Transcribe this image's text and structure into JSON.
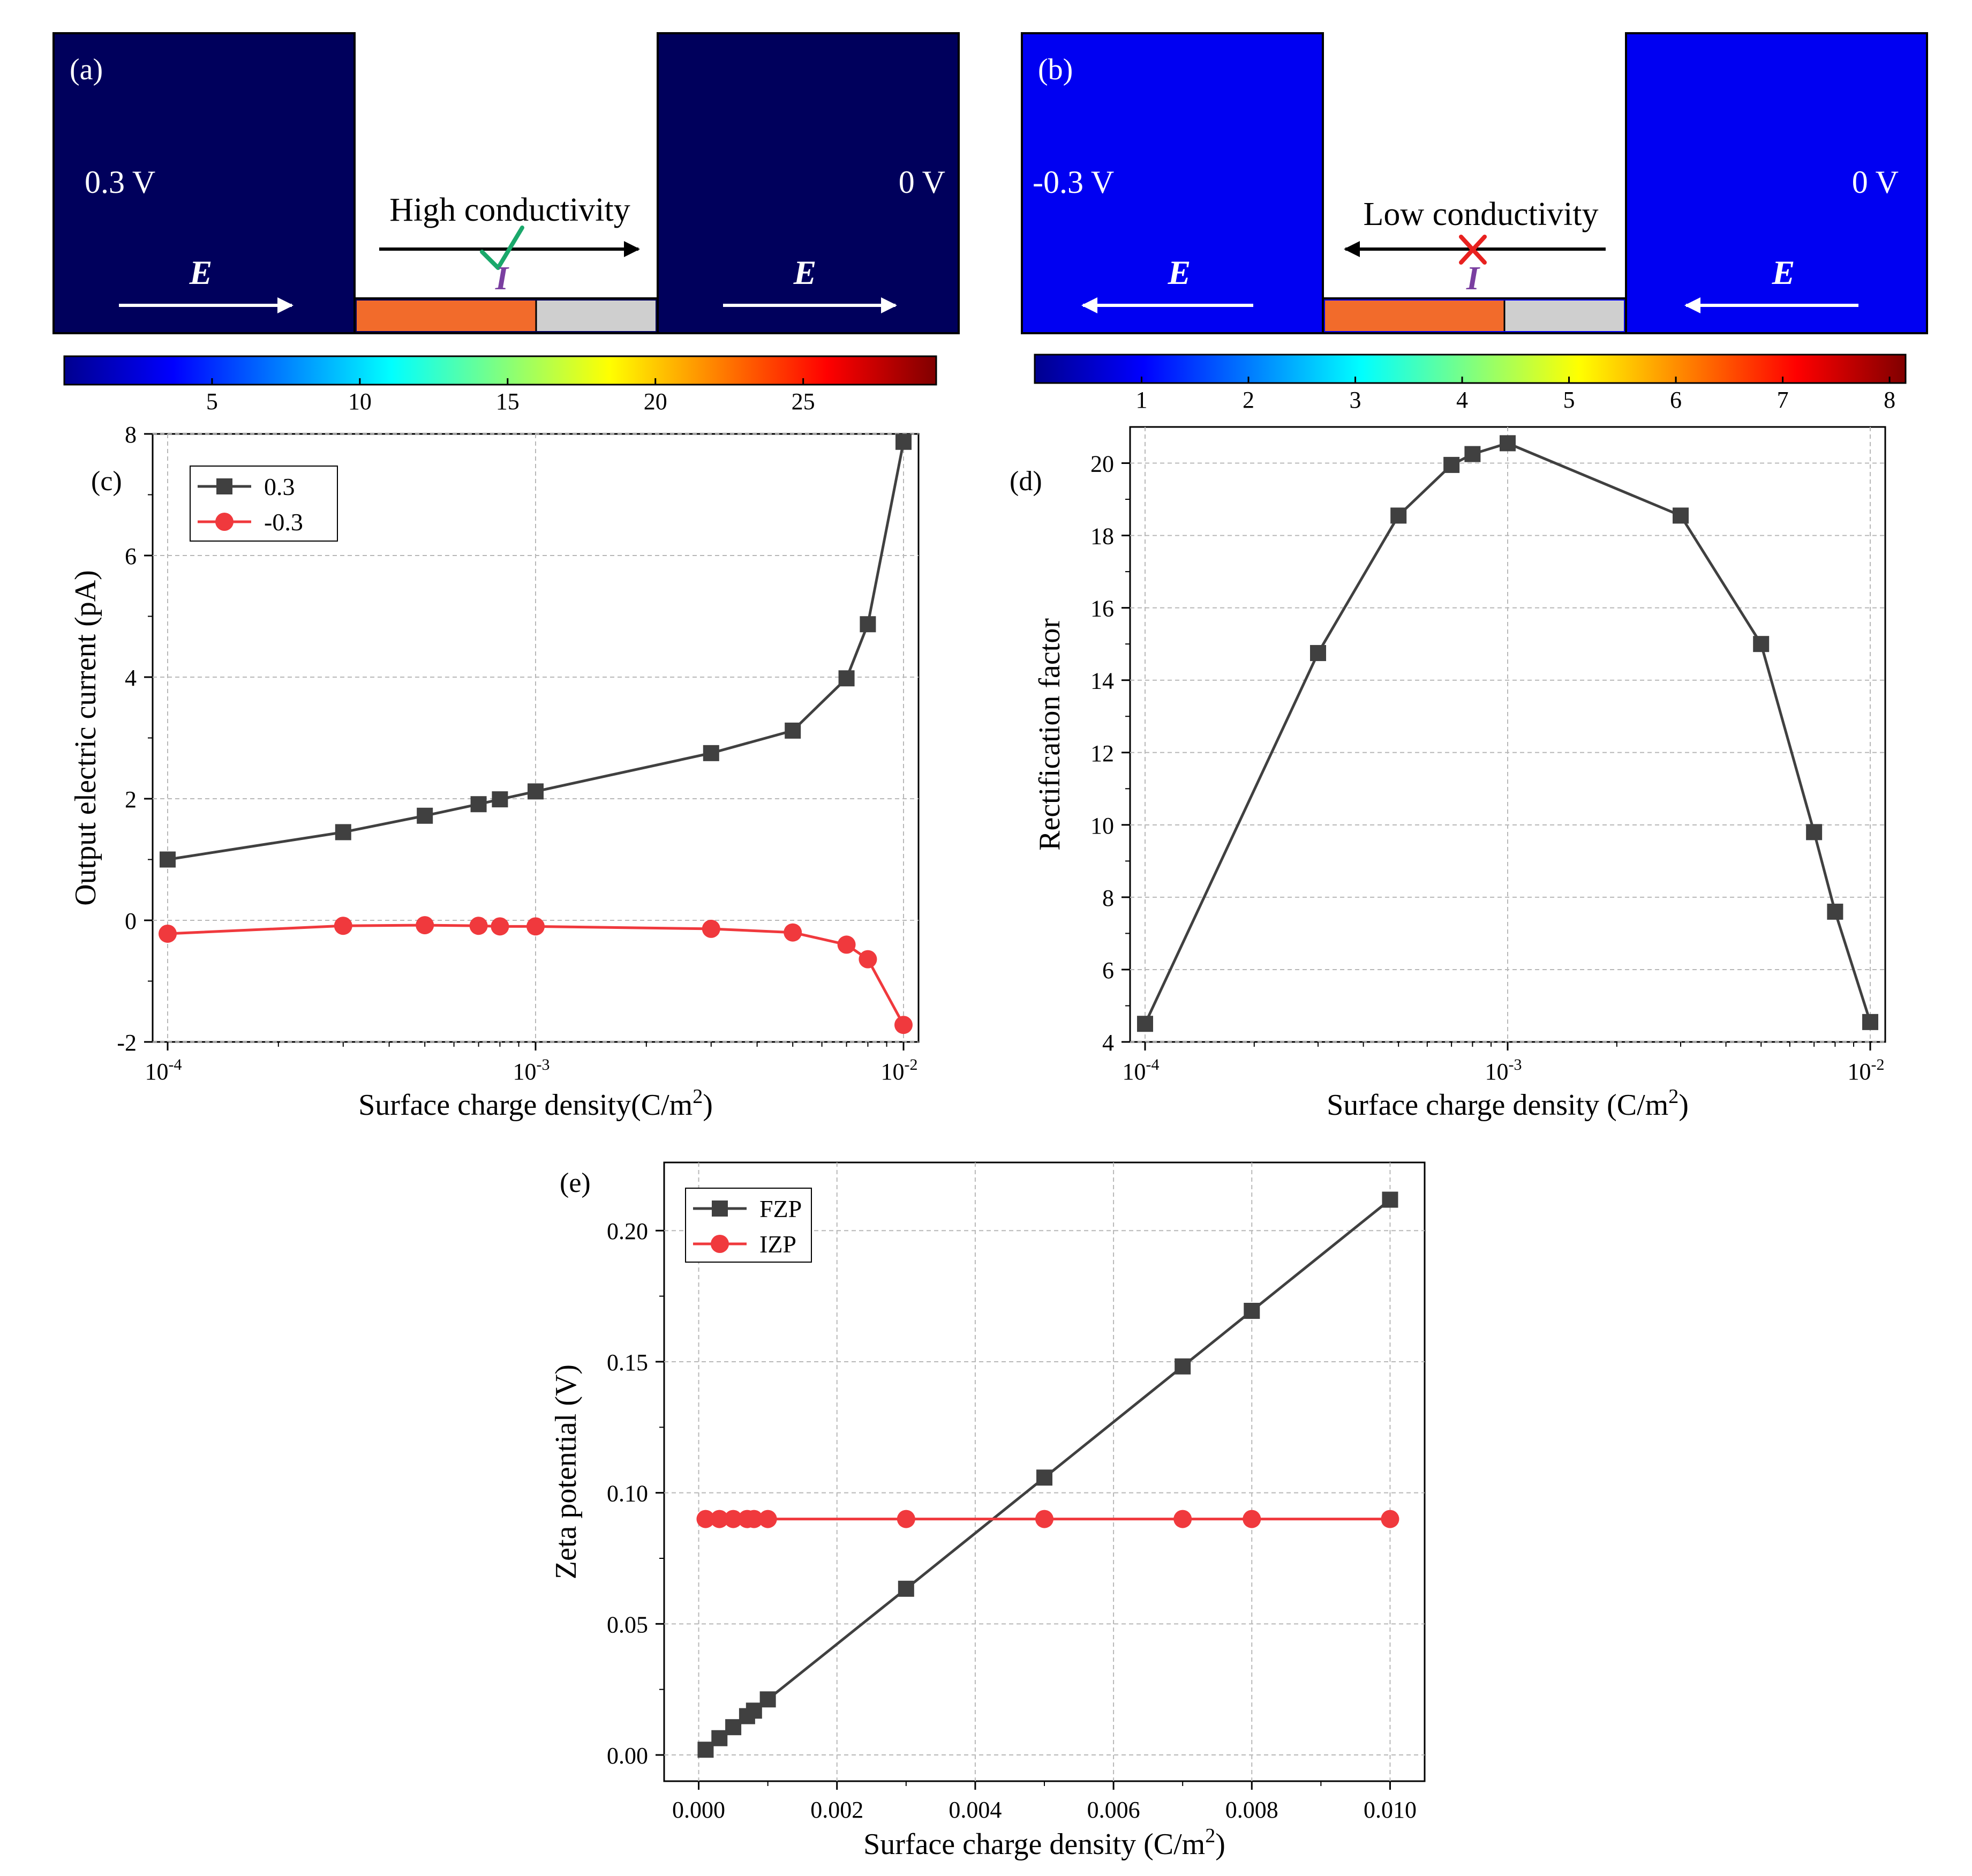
{
  "colors": {
    "dark_blue": "#00005c",
    "bright_blue": "#0000f2",
    "black_series": "#404040",
    "red_series": "#f0393d",
    "orange_segment": "#f26b2b",
    "gray_segment": "#cfcfcf",
    "arrow": "#ffffff",
    "check": "#1aa86b",
    "cross": "#e8211f",
    "current_label": "#7a3fa0"
  },
  "panel_a": {
    "label": "(a)",
    "left_voltage": "0.3 V",
    "right_voltage": "0 V",
    "field_label": "E",
    "conductivity_text": "High conductivity",
    "current_label": "I",
    "mark": "check-icon",
    "colorbar_ticks": [
      "5",
      "10",
      "15",
      "20",
      "25"
    ],
    "colorbar_tick_values": [
      5,
      10,
      15,
      20,
      25
    ],
    "colorbar_range": [
      0,
      29.5
    ]
  },
  "panel_b": {
    "label": "(b)",
    "left_voltage": "-0.3 V",
    "right_voltage": "0 V",
    "field_label": "E",
    "conductivity_text": "Low conductivity",
    "current_label": "I",
    "mark": "cross-icon",
    "colorbar_ticks": [
      "1",
      "2",
      "3",
      "4",
      "5",
      "6",
      "7",
      "8"
    ],
    "colorbar_tick_values": [
      1,
      2,
      3,
      4,
      5,
      6,
      7,
      8
    ],
    "colorbar_range": [
      0,
      8.15
    ]
  },
  "chart_data": [
    {
      "id": "c",
      "panel_label": "(c)",
      "type": "line",
      "xscale": "log",
      "xlabel": "Surface charge density(C/m",
      "xlabel_sup": "2",
      "xlabel_end": ")",
      "ylabel": "Output electric current (pA)",
      "xlim": [
        0.0001,
        0.01
      ],
      "ylim": [
        -2,
        8
      ],
      "xticks": [
        0.0001,
        0.001,
        0.01
      ],
      "xtick_base": "10",
      "xtick_exps": [
        "-4",
        "-3",
        "-2"
      ],
      "yticks": [
        -2,
        0,
        2,
        4,
        6,
        8
      ],
      "ytick_labels": [
        "-2",
        "0",
        "2",
        "4",
        "6",
        "8"
      ],
      "legend": "top-left",
      "series": [
        {
          "name": "0.3",
          "marker": "square",
          "color": "#404040",
          "x": [
            0.0001,
            0.0003,
            0.0005,
            0.0007,
            0.0008,
            0.001,
            0.003,
            0.005,
            0.007,
            0.008,
            0.01
          ],
          "y": [
            1.0,
            1.45,
            1.72,
            1.91,
            1.99,
            2.12,
            2.75,
            3.12,
            3.98,
            4.87,
            7.87
          ]
        },
        {
          "name": "-0.3",
          "marker": "circle",
          "color": "#f0393d",
          "x": [
            0.0001,
            0.0003,
            0.0005,
            0.0007,
            0.0008,
            0.001,
            0.003,
            0.005,
            0.007,
            0.008,
            0.01
          ],
          "y": [
            -0.22,
            -0.09,
            -0.08,
            -0.09,
            -0.1,
            -0.1,
            -0.14,
            -0.2,
            -0.4,
            -0.64,
            -1.72
          ]
        }
      ]
    },
    {
      "id": "d",
      "panel_label": "(d)",
      "type": "line",
      "xscale": "log",
      "xlabel": "Surface charge density (C/m",
      "xlabel_sup": "2",
      "xlabel_end": ")",
      "ylabel": "Rectification factor",
      "xlim": [
        0.0001,
        0.01
      ],
      "ylim": [
        4,
        21
      ],
      "xticks": [
        0.0001,
        0.001,
        0.01
      ],
      "xtick_base": "10",
      "xtick_exps": [
        "-4",
        "-3",
        "-2"
      ],
      "yticks": [
        4,
        6,
        8,
        10,
        12,
        14,
        16,
        18,
        20
      ],
      "ytick_labels": [
        "4",
        "6",
        "8",
        "10",
        "12",
        "14",
        "16",
        "18",
        "20"
      ],
      "series": [
        {
          "name": "Rectification factor",
          "marker": "square",
          "color": "#404040",
          "x": [
            0.0001,
            0.0003,
            0.0005,
            0.0007,
            0.0008,
            0.001,
            0.003,
            0.005,
            0.007,
            0.008,
            0.01
          ],
          "y": [
            4.5,
            14.75,
            18.55,
            19.95,
            20.25,
            20.55,
            18.55,
            15.0,
            9.8,
            7.6,
            4.55
          ]
        }
      ]
    },
    {
      "id": "e",
      "panel_label": "(e)",
      "type": "line",
      "xscale": "linear",
      "xlabel": "Surface charge density (C/m",
      "xlabel_sup": "2",
      "xlabel_end": ")",
      "ylabel": "Zeta potential (V)",
      "xlim": [
        -0.0005,
        0.0105
      ],
      "ylim": [
        -0.01,
        0.226
      ],
      "xticks": [
        0,
        0.002,
        0.004,
        0.006,
        0.008,
        0.01
      ],
      "xtick_labels": [
        "0.000",
        "0.002",
        "0.004",
        "0.006",
        "0.008",
        "0.010"
      ],
      "yticks": [
        0,
        0.05,
        0.1,
        0.15,
        0.2
      ],
      "ytick_labels": [
        "0.00",
        "0.05",
        "0.10",
        "0.15",
        "0.20"
      ],
      "legend": "top-left",
      "series": [
        {
          "name": "FZP",
          "marker": "square",
          "color": "#404040",
          "x": [
            0.0001,
            0.0003,
            0.0005,
            0.0007,
            0.0008,
            0.001,
            0.003,
            0.005,
            0.007,
            0.008,
            0.01
          ],
          "y": [
            0.002,
            0.0064,
            0.0106,
            0.0148,
            0.0169,
            0.0212,
            0.0634,
            0.1058,
            0.1482,
            0.1694,
            0.2118
          ]
        },
        {
          "name": "IZP",
          "marker": "circle",
          "color": "#f0393d",
          "x": [
            0.0001,
            0.0003,
            0.0005,
            0.0007,
            0.0008,
            0.001,
            0.003,
            0.005,
            0.007,
            0.008,
            0.01
          ],
          "y": [
            0.09,
            0.09,
            0.09,
            0.09,
            0.09,
            0.09,
            0.09,
            0.09,
            0.09,
            0.09,
            0.09
          ]
        }
      ]
    }
  ]
}
